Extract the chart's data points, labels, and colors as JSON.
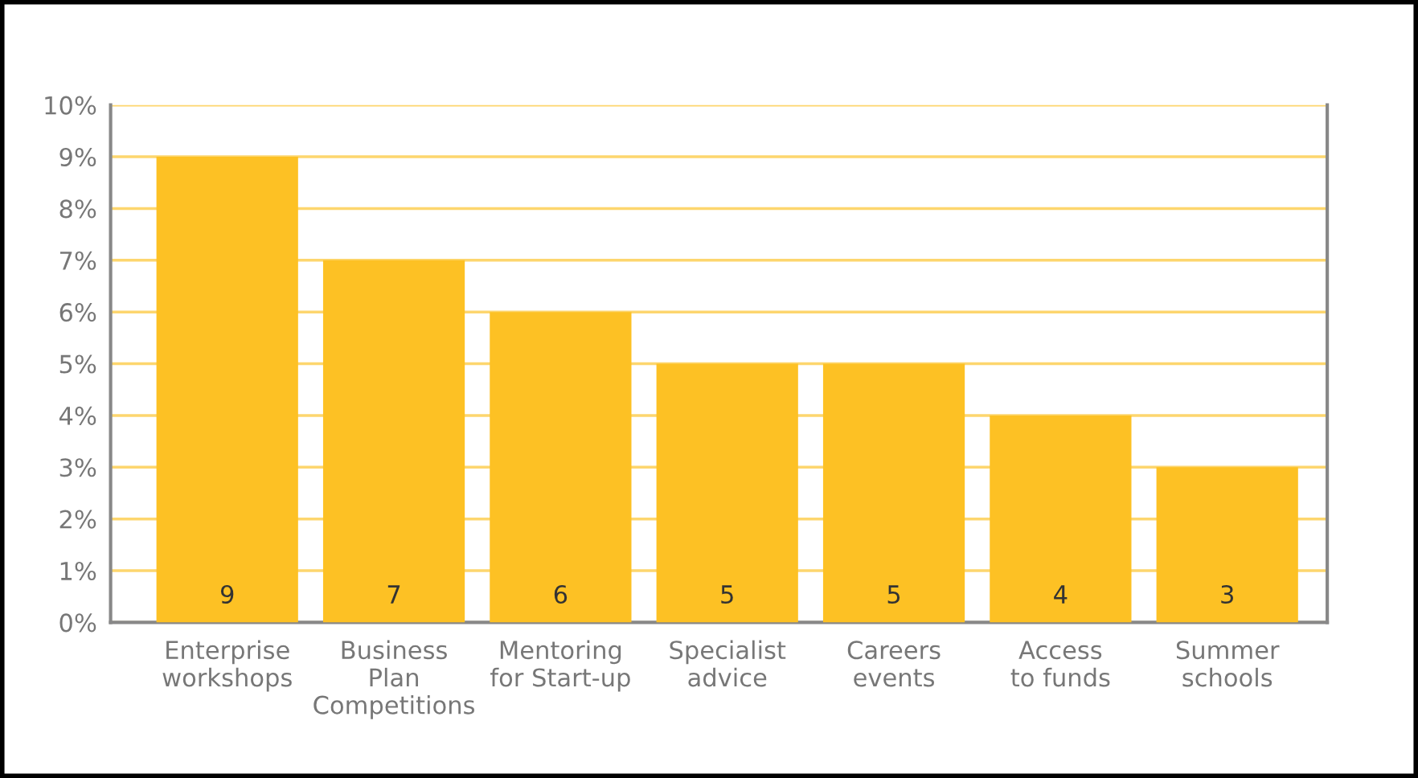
{
  "chart_data": {
    "type": "bar",
    "categories": [
      "Enterprise\nworkshops",
      "Business\nPlan\nCompetitions",
      "Mentoring\nfor Start-up",
      "Specialist\nadvice",
      "Careers\nevents",
      "Access\nto funds",
      "Summer\nschools"
    ],
    "values": [
      9,
      7,
      6,
      5,
      5,
      4,
      3
    ],
    "color": "#fdc124",
    "ylim": [
      0,
      10
    ],
    "yticks": [
      {
        "value": 0,
        "label": "0%"
      },
      {
        "value": 1,
        "label": "1%"
      },
      {
        "value": 2,
        "label": "2%"
      },
      {
        "value": 3,
        "label": "3%"
      },
      {
        "value": 4,
        "label": "4%"
      },
      {
        "value": 5,
        "label": "5%"
      },
      {
        "value": 6,
        "label": "6%"
      },
      {
        "value": 7,
        "label": "7%"
      },
      {
        "value": 8,
        "label": "8%"
      },
      {
        "value": 9,
        "label": "9%"
      },
      {
        "value": 10,
        "label": "10%"
      }
    ],
    "grid": "y",
    "data_labels": true
  }
}
